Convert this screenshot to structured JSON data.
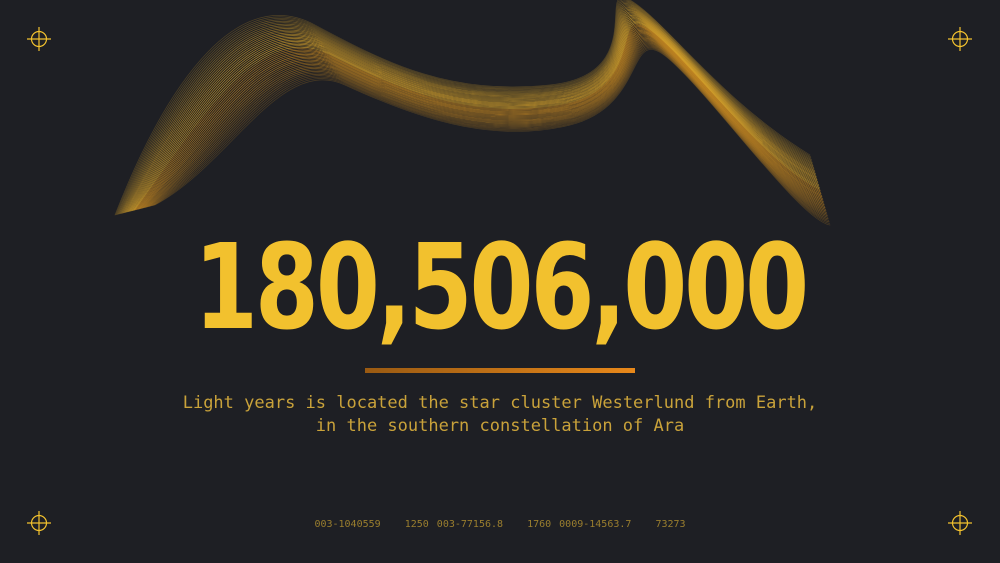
{
  "headline": {
    "value": "180,506,000"
  },
  "description": {
    "line1": "Light years is located the star cluster Westerlund from Earth,",
    "line2": "in the southern constellation of Ara"
  },
  "footer_codes": [
    "003-1040559",
    "1250 003-77156.8",
    "1760 0009-14563.7",
    "73273"
  ],
  "colors": {
    "background": "#1e1f24",
    "accent": "#f2c12e",
    "text_muted": "#c9a23a",
    "underline_start": "#9a5a12",
    "underline_end": "#e8881a"
  },
  "icons": {
    "corners": "crosshair-icon",
    "decoration": "golden-wave-lines"
  }
}
